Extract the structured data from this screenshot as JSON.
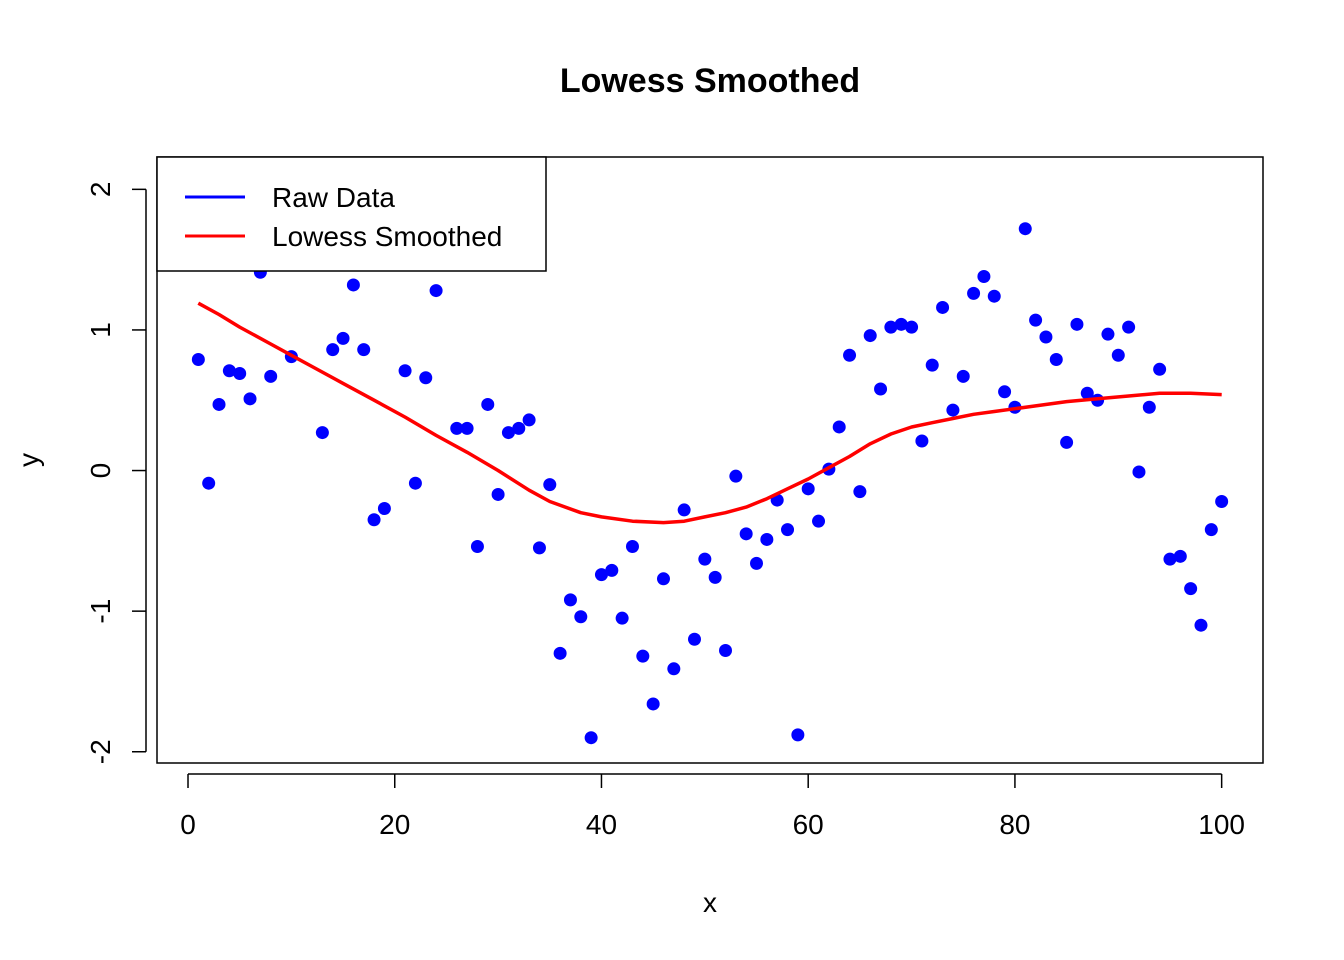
{
  "chart_data": {
    "type": "scatter",
    "title": "Lowess Smoothed",
    "xlabel": "x",
    "ylabel": "y",
    "xlim": [
      -3,
      104
    ],
    "ylim": [
      -2.08,
      2.23
    ],
    "x_ticks": [
      0,
      20,
      40,
      60,
      80,
      100
    ],
    "y_ticks": [
      -2,
      -1,
      0,
      1,
      2
    ],
    "x_tick_labels": [
      "0",
      "20",
      "40",
      "60",
      "80",
      "100"
    ],
    "y_tick_labels": [
      "-2",
      "-1",
      "0",
      "1",
      "2"
    ],
    "grid": false,
    "legend": {
      "position": "top-left",
      "entries": [
        {
          "label": "Raw Data",
          "color": "#0000ff"
        },
        {
          "label": "Lowess Smoothed",
          "color": "#ff0000"
        }
      ]
    },
    "series": [
      {
        "name": "Raw Data",
        "kind": "points",
        "color": "#0000ff",
        "x": [
          1,
          2,
          3,
          4,
          5,
          6,
          7,
          8,
          10,
          13,
          14,
          15,
          16,
          17,
          18,
          19,
          21,
          22,
          23,
          24,
          26,
          27,
          28,
          29,
          30,
          31,
          32,
          33,
          34,
          35,
          36,
          37,
          38,
          39,
          40,
          41,
          42,
          43,
          44,
          45,
          46,
          47,
          48,
          49,
          50,
          51,
          52,
          53,
          54,
          55,
          56,
          57,
          58,
          59,
          60,
          61,
          62,
          63,
          64,
          65,
          66,
          67,
          68,
          69,
          70,
          71,
          72,
          73,
          74,
          75,
          76,
          77,
          78,
          79,
          80,
          81,
          82,
          83,
          84,
          85,
          86,
          87,
          88,
          89,
          90,
          91,
          92,
          93,
          94,
          95,
          96,
          97,
          98,
          99,
          100
        ],
        "y": [
          0.79,
          -0.09,
          0.47,
          0.71,
          0.69,
          0.51,
          1.41,
          0.67,
          0.81,
          0.27,
          0.86,
          0.94,
          1.32,
          0.86,
          -0.35,
          -0.27,
          0.71,
          -0.09,
          0.66,
          1.28,
          0.3,
          0.3,
          -0.54,
          0.47,
          -0.17,
          0.27,
          0.3,
          0.36,
          -0.55,
          -0.1,
          -1.3,
          -0.92,
          -1.04,
          -1.9,
          -0.74,
          -0.71,
          -1.05,
          -0.54,
          -1.32,
          -1.66,
          -0.77,
          -1.41,
          -0.28,
          -1.2,
          -0.63,
          -0.76,
          -1.28,
          -0.04,
          -0.45,
          -0.66,
          -0.49,
          -0.21,
          -0.42,
          -1.88,
          -0.13,
          -0.36,
          0.01,
          0.31,
          0.82,
          -0.15,
          0.96,
          0.58,
          1.02,
          1.04,
          1.02,
          0.21,
          0.75,
          1.16,
          0.43,
          0.67,
          1.26,
          1.38,
          1.24,
          0.56,
          0.45,
          1.72,
          1.07,
          0.95,
          0.79,
          0.2,
          1.04,
          0.55,
          0.5,
          0.97,
          0.82,
          1.02,
          -0.01,
          0.45,
          0.72,
          -0.63,
          -0.61,
          -0.84,
          -1.1,
          -0.42,
          -0.22
        ]
      },
      {
        "name": "Lowess Smoothed",
        "kind": "line",
        "color": "#ff0000",
        "x": [
          1,
          3,
          5,
          8,
          10,
          12,
          15,
          18,
          21,
          24,
          27,
          30,
          33,
          35,
          38,
          40,
          43,
          46,
          48,
          50,
          52,
          54,
          56,
          58,
          60,
          62,
          64,
          66,
          68,
          70,
          72,
          74,
          76,
          78,
          80,
          82,
          85,
          88,
          91,
          94,
          97,
          100
        ],
        "y": [
          1.19,
          1.11,
          1.02,
          0.9,
          0.82,
          0.74,
          0.62,
          0.5,
          0.38,
          0.25,
          0.13,
          0.0,
          -0.14,
          -0.22,
          -0.3,
          -0.33,
          -0.36,
          -0.37,
          -0.36,
          -0.33,
          -0.3,
          -0.26,
          -0.2,
          -0.13,
          -0.06,
          0.02,
          0.1,
          0.19,
          0.26,
          0.31,
          0.34,
          0.37,
          0.4,
          0.42,
          0.44,
          0.46,
          0.49,
          0.51,
          0.53,
          0.55,
          0.55,
          0.54
        ]
      }
    ]
  }
}
